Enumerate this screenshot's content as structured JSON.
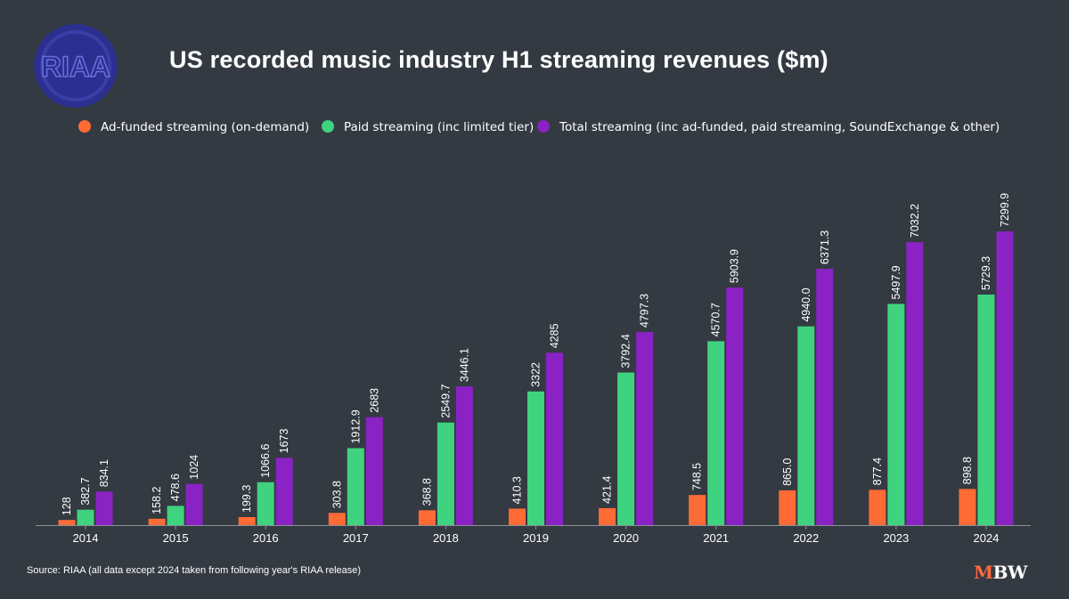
{
  "title": "US recorded music industry H1 streaming revenues ($m)",
  "logo_text": "RIAA",
  "source": "Source: RIAA (all data except 2024 taken from following year's RIAA release)",
  "brand": {
    "m": "M",
    "bw": "BW"
  },
  "colors": {
    "background": "#343a42",
    "logo_blue": "#2b2f8f",
    "brand_orange": "#ff6a3d"
  },
  "chart_data": {
    "type": "bar",
    "categories": [
      "2014",
      "2015",
      "2016",
      "2017",
      "2018",
      "2019",
      "2020",
      "2021",
      "2022",
      "2023",
      "2024"
    ],
    "ylim": [
      0,
      7500
    ],
    "grid": false,
    "legend": "top-center",
    "series": [
      {
        "name": "Ad-funded streaming (on-demand)",
        "color": "#ff6b35",
        "values": [
          128,
          158.2,
          199.3,
          303.8,
          368.8,
          410.3,
          421.4,
          748.5,
          865.0,
          877.4,
          898.8
        ],
        "labels": [
          "128",
          "158.2",
          "199.3",
          "303.8",
          "368.8",
          "410.3",
          "421.4",
          "748.5",
          "865.0",
          "877.4",
          "898.8"
        ]
      },
      {
        "name": "Paid streaming (inc limited tier)",
        "color": "#3fd37f",
        "values": [
          382.7,
          478.6,
          1066.6,
          1912.9,
          2549.7,
          3322,
          3792.4,
          4570.7,
          4940.0,
          5497.9,
          5729.3
        ],
        "labels": [
          "382.7",
          "478.6",
          "1066.6",
          "1912.9",
          "2549.7",
          "3322",
          "3792.4",
          "4570.7",
          "4940.0",
          "5497.9",
          "5729.3"
        ]
      },
      {
        "name": "Total streaming (inc ad-funded, paid streaming, SoundExchange & other)",
        "color": "#8b22c4",
        "values": [
          834.1,
          1024,
          1673,
          2683,
          3446.1,
          4285,
          4797.3,
          5903.9,
          6371.3,
          7032.2,
          7299.9
        ],
        "labels": [
          "834.1",
          "1024",
          "1673",
          "2683",
          "3446.1",
          "4285",
          "4797.3",
          "5903.9",
          "6371.3",
          "7032.2",
          "7299.9"
        ]
      }
    ]
  }
}
